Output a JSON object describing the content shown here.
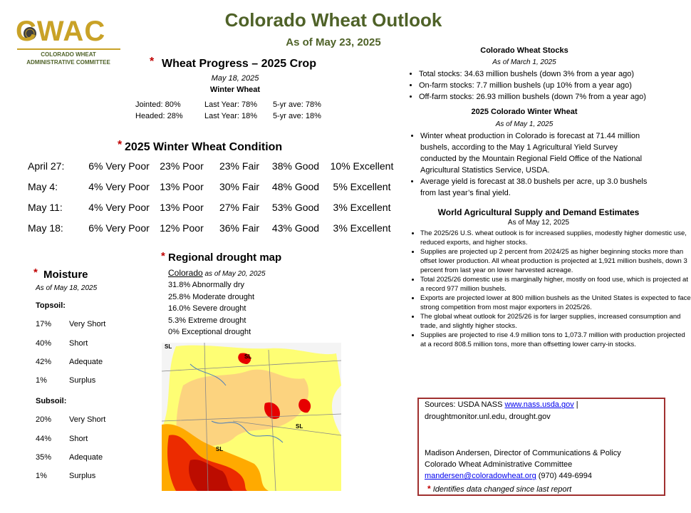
{
  "logo": {
    "mark": "CWAC",
    "line1": "COLORADO WHEAT",
    "line2": "ADMINISTRATIVE COMMITTEE"
  },
  "header": {
    "title": "Colorado Wheat Outlook",
    "subtitle": "As of May 23, 2025"
  },
  "marker": "*",
  "progress": {
    "title": "Wheat Progress – 2025 Crop",
    "date": "May 18, 2025",
    "crop": "Winter Wheat",
    "rows": [
      [
        "Jointed: 80%",
        "Last Year: 78%",
        "5-yr ave:  78%"
      ],
      [
        "Headed: 28%",
        "Last Year: 18%",
        "5-yr ave:  18%"
      ]
    ]
  },
  "condition": {
    "title": "2025 Winter Wheat Condition",
    "rows": [
      [
        "April 27:",
        "6% Very Poor",
        "23% Poor",
        "23% Fair",
        "38% Good",
        "10% Excellent"
      ],
      [
        "May 4:",
        "4% Very Poor",
        "13% Poor",
        "30% Fair",
        "48% Good",
        "5% Excellent"
      ],
      [
        "May 11:",
        "4% Very Poor",
        "13% Poor",
        "27% Fair",
        "53% Good",
        "3% Excellent"
      ],
      [
        "May 18:",
        "6% Very Poor",
        "12% Poor",
        "36% Fair",
        "43% Good",
        "3% Excellent"
      ]
    ]
  },
  "moisture": {
    "title": "Moisture",
    "date": "As of May 18, 2025",
    "topsoil": {
      "label": "Topsoil:",
      "rows": [
        [
          "17%",
          "Very Short"
        ],
        [
          "40%",
          "Short"
        ],
        [
          "42%",
          "Adequate"
        ],
        [
          "1%",
          "Surplus"
        ]
      ]
    },
    "subsoil": {
      "label": "Subsoil:",
      "rows": [
        [
          "20%",
          "Very Short"
        ],
        [
          "44%",
          "Short"
        ],
        [
          "35%",
          "Adequate"
        ],
        [
          "1%",
          "Surplus"
        ]
      ]
    }
  },
  "drought": {
    "title": "Regional drought map",
    "region": "Colorado",
    "date": "as of May 20, 2025",
    "rows": [
      "31.8%  Abnormally dry",
      "25.8%  Moderate drought",
      "16.0%  Severe drought",
      "5.3%  Extreme drought",
      "0%  Exceptional drought"
    ],
    "map_labels": [
      "SL",
      "SL",
      "SL",
      "SL"
    ]
  },
  "stocks": {
    "title": "Colorado Wheat Stocks",
    "date": "As of March 1, 2025",
    "items": [
      "Total stocks: 34.63 million bushels (down 3% from a year ago)",
      "On-farm stocks: 7.7 million bushels (up 10% from a year ago)",
      "Off-farm stocks: 26.93 million bushels (down 7% from a year ago)"
    ]
  },
  "winter": {
    "title": "2025 Colorado Winter Wheat",
    "date": "As of May 1, 2025",
    "items": [
      "Winter wheat production in Colorado is forecast at 71.44 million bushels, according to the May 1 Agricultural Yield Survey conducted by the Mountain Regional Field Office of the National Agricultural Statistics Service, USDA.",
      "Average yield is forecast at 38.0 bushels per acre, up 3.0 bushels from last year’s final yield."
    ]
  },
  "wasde": {
    "title": "World Agricultural Supply and Demand Estimates",
    "date": "As of May 12, 2025",
    "items": [
      "The 2025/26 U.S. wheat outlook is for increased supplies, modestly higher domestic use, reduced exports, and higher stocks.",
      "Supplies are projected up 2 percent from 2024/25 as higher beginning stocks more than offset lower production. All wheat production is projected at 1,921 million bushels, down 3 percent from last year on lower harvested acreage.",
      "Total 2025/26 domestic use is marginally higher, mostly on food use, which is projected at a record 977 million bushels.",
      "Exports are projected lower at 800 million bushels as the United States is expected to face strong competition from most major exporters in 2025/26.",
      "The global wheat outlook for 2025/26 is for larger supplies, increased consumption and trade, and slightly higher stocks.",
      "Supplies are projected to rise 4.9 million tons to 1,073.7 million with production projected at a record 808.5 million tons, more than offsetting lower carry-in stocks."
    ]
  },
  "sources": {
    "prefix": "Sources: USDA NASS ",
    "link": "www.nass.usda.gov",
    "suffix": " |",
    "line2": "droughtmonitor.unl.edu, drought.gov",
    "contact_name": "Madison Andersen, Director of Communications & Policy",
    "contact_org": "Colorado Wheat Administrative Committee",
    "email": "mandersen@coloradowheat.org",
    "phone": " (970) 449-6994",
    "note": "Identifies data changed since last report"
  }
}
